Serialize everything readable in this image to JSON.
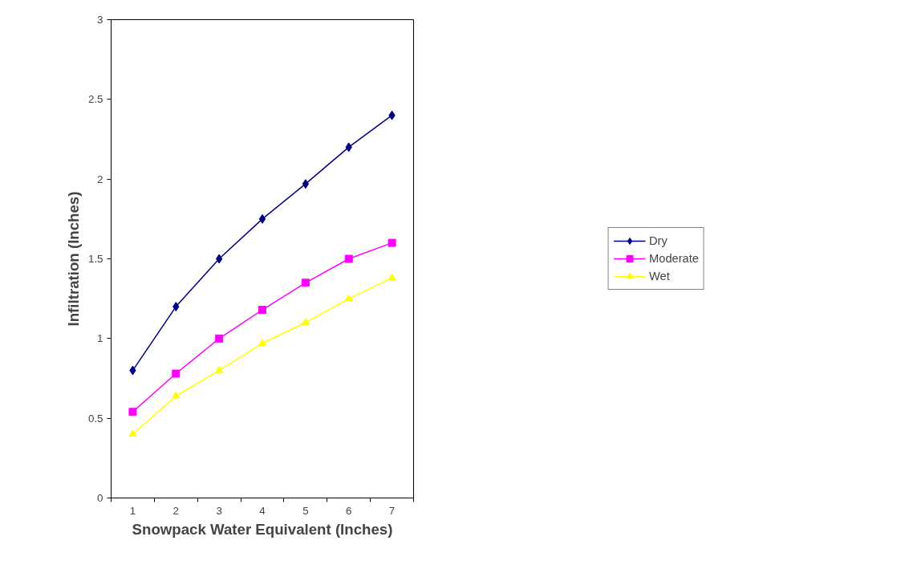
{
  "chart_data": {
    "type": "line",
    "xlabel": "Snowpack Water Equivalent (Inches)",
    "ylabel": "Infiltration (Inches)",
    "categories": [
      "1",
      "2",
      "3",
      "4",
      "5",
      "6",
      "7"
    ],
    "ylim": [
      0,
      3
    ],
    "yticks": [
      0,
      0.5,
      1,
      1.5,
      2,
      2.5,
      3
    ],
    "grid": false,
    "legend": "right",
    "series": [
      {
        "name": "Dry",
        "color": "#000080",
        "marker": "diamond",
        "values": [
          0.8,
          1.2,
          1.5,
          1.75,
          1.97,
          2.2,
          2.4
        ]
      },
      {
        "name": "Moderate",
        "color": "#ff00ff",
        "marker": "square",
        "values": [
          0.54,
          0.78,
          1.0,
          1.18,
          1.35,
          1.5,
          1.6
        ]
      },
      {
        "name": "Wet",
        "color": "#ffff00",
        "marker": "triangle",
        "values": [
          0.4,
          0.64,
          0.8,
          0.97,
          1.1,
          1.25,
          1.38
        ]
      }
    ]
  }
}
